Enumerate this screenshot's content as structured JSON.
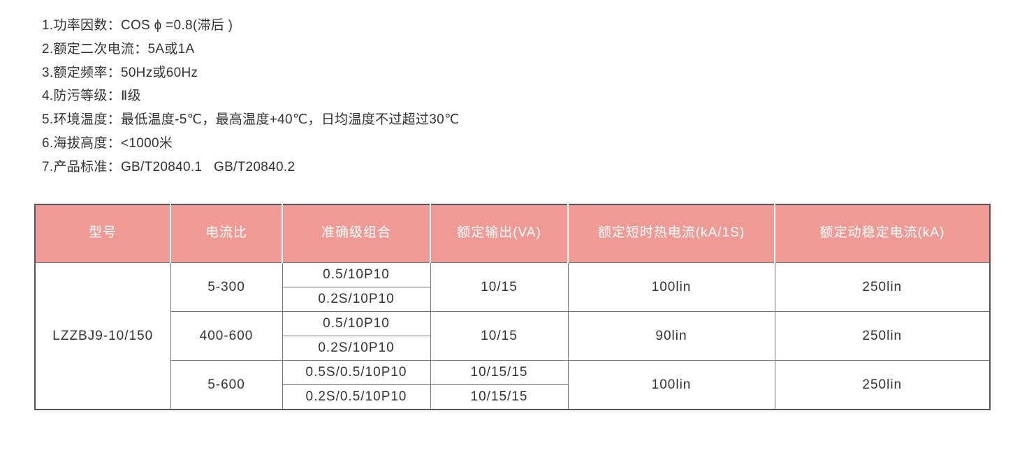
{
  "specs": [
    "1.功率因数：COS ϕ =0.8(滞后 )",
    "2.额定二次电流：5A或1A",
    "3.额定频率：50Hz或60Hz",
    "4.防污等级：Ⅱ级",
    "5.环境温度：最低温度-5℃，最高温度+40℃，日均温度不过超过30℃",
    "6.海拔高度：<1000米",
    "7.产品标准：GB/T20840.1   GB/T20840.2"
  ],
  "table": {
    "headers": [
      "型号",
      "电流比",
      "准确级组合",
      "额定输出(VA)",
      "额定短时热电流(kA/1S)",
      "额定动稳定电流(kA)"
    ],
    "model": "LZZBJ9-10/150",
    "groups": [
      {
        "ratio": "5-300",
        "accuracy": [
          "0.5/10P10",
          "0.2S/10P10"
        ],
        "output": [
          "10/15"
        ],
        "thermal": "100lin",
        "dynamic": "250lin"
      },
      {
        "ratio": "400-600",
        "accuracy": [
          "0.5/10P10",
          "0.2S/10P10"
        ],
        "output": [
          "10/15"
        ],
        "thermal": "90lin",
        "dynamic": "250lin"
      },
      {
        "ratio": "5-600",
        "accuracy": [
          "0.5S/0.5/10P10",
          "0.2S/0.5/10P10"
        ],
        "output": [
          "10/15/15",
          "10/15/15"
        ],
        "thermal": "100lin",
        "dynamic": "250lin"
      }
    ]
  },
  "colors": {
    "header_bg": "#f09a95",
    "header_text": "#ffffff"
  }
}
